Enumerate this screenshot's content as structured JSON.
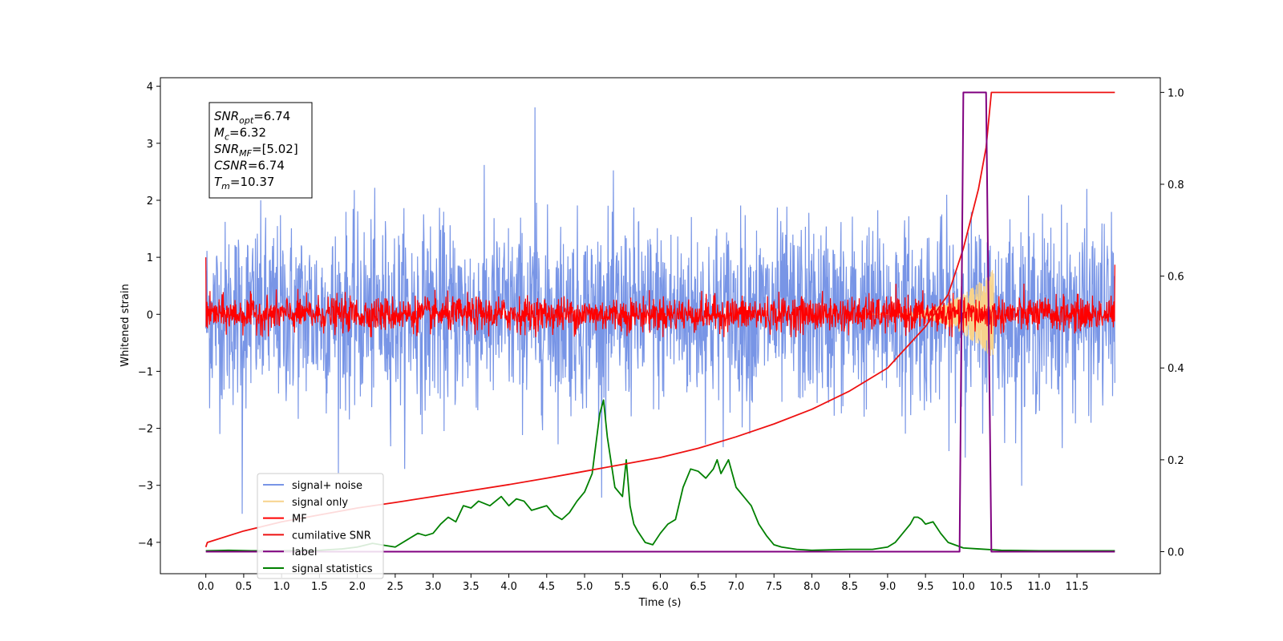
{
  "chart_data": {
    "type": "line",
    "xlabel": "Time (s)",
    "ylabel": "Whitened strain",
    "xlim": [
      -0.6,
      12.6
    ],
    "ylim_left": [
      -4.55,
      4.15
    ],
    "ylim_right": [
      -0.048,
      1.032
    ],
    "x_ticks": [
      "0.0",
      "0.5",
      "1.0",
      "1.5",
      "2.0",
      "2.5",
      "3.0",
      "3.5",
      "4.0",
      "4.5",
      "5.0",
      "5.5",
      "6.0",
      "6.5",
      "7.0",
      "7.5",
      "8.0",
      "8.5",
      "9.0",
      "9.5",
      "10.0",
      "10.5",
      "11.0",
      "11.5"
    ],
    "y_ticks_left": [
      "4",
      "3",
      "2",
      "1",
      "0",
      "−1",
      "−2",
      "−3",
      "−4"
    ],
    "y_ticks_right": [
      "1.0",
      "0.8",
      "0.6",
      "0.4",
      "0.2",
      "0.0"
    ],
    "annotation": {
      "lines": [
        {
          "sym": "SNR",
          "sub": "opt",
          "val": "=6.74"
        },
        {
          "sym": "M",
          "sub": "c",
          "val": "=6.32"
        },
        {
          "sym": "SNR",
          "sub": "MF",
          "val": "=[5.02]"
        },
        {
          "sym": "CSNR",
          "sub": "",
          "val": "=6.74"
        },
        {
          "sym": "T",
          "sub": "m",
          "val": "=10.37"
        }
      ]
    },
    "legend": {
      "position": "lower-left",
      "entries": [
        {
          "label": "signal+ noise",
          "color": "#7895e6"
        },
        {
          "label": "signal only",
          "color": "#f7d38c"
        },
        {
          "label": "MF",
          "color": "#ff0000"
        },
        {
          "label": "cumilative SNR",
          "color": "#ee1111"
        },
        {
          "label": "label",
          "color": "#800080"
        },
        {
          "label": "signal statistics",
          "color": "#008000"
        }
      ]
    },
    "series": [
      {
        "name": "signal+ noise",
        "axis": "left",
        "color": "#7895e6",
        "x_range": [
          0.0,
          12.0
        ],
        "noise_std": 0.8,
        "min": -3.5,
        "max": 3.63
      },
      {
        "name": "signal only",
        "axis": "left",
        "color": "#f7d38c",
        "x_range": [
          8.7,
          10.4
        ],
        "peak": 0.8
      },
      {
        "name": "MF",
        "axis": "left",
        "color": "#ff0000",
        "x_range": [
          0.0,
          12.0
        ],
        "noise_std": 0.15,
        "start": 1.0,
        "end": 0.87
      },
      {
        "name": "cumilative SNR",
        "axis": "right",
        "x": [
          0.0,
          0.02,
          0.5,
          1.0,
          1.5,
          2.0,
          2.5,
          3.0,
          3.5,
          4.0,
          4.5,
          5.0,
          5.5,
          6.0,
          6.5,
          7.0,
          7.5,
          8.0,
          8.5,
          9.0,
          9.5,
          9.8,
          10.0,
          10.2,
          10.3,
          10.37,
          12.0
        ],
        "y": [
          0.01,
          0.02,
          0.045,
          0.065,
          0.08,
          0.095,
          0.107,
          0.12,
          0.133,
          0.146,
          0.16,
          0.175,
          0.19,
          0.205,
          0.225,
          0.25,
          0.278,
          0.31,
          0.35,
          0.4,
          0.49,
          0.56,
          0.66,
          0.79,
          0.88,
          1.0,
          1.0
        ]
      },
      {
        "name": "label",
        "axis": "right",
        "x": [
          0.0,
          9.95,
          10.0,
          10.3,
          10.37,
          12.0
        ],
        "y": [
          0.0,
          0.0,
          1.0,
          1.0,
          0.0,
          0.0
        ]
      },
      {
        "name": "signal statistics",
        "axis": "right",
        "x": [
          0.0,
          0.3,
          0.6,
          1.0,
          1.5,
          1.8,
          2.0,
          2.2,
          2.35,
          2.5,
          2.7,
          2.8,
          2.9,
          3.0,
          3.1,
          3.2,
          3.3,
          3.4,
          3.5,
          3.6,
          3.75,
          3.9,
          4.0,
          4.1,
          4.2,
          4.3,
          4.4,
          4.5,
          4.6,
          4.7,
          4.8,
          4.9,
          5.0,
          5.1,
          5.2,
          5.25,
          5.3,
          5.4,
          5.5,
          5.55,
          5.6,
          5.65,
          5.7,
          5.8,
          5.9,
          6.0,
          6.1,
          6.2,
          6.3,
          6.4,
          6.5,
          6.6,
          6.7,
          6.75,
          6.8,
          6.9,
          7.0,
          7.1,
          7.2,
          7.3,
          7.4,
          7.5,
          7.6,
          7.8,
          8.0,
          8.5,
          8.8,
          9.0,
          9.1,
          9.2,
          9.3,
          9.35,
          9.4,
          9.45,
          9.5,
          9.6,
          9.7,
          9.8,
          10.0,
          10.2,
          10.5,
          11.0,
          12.0
        ],
        "y": [
          0.002,
          0.003,
          0.002,
          0.002,
          0.003,
          0.006,
          0.01,
          0.018,
          0.014,
          0.01,
          0.03,
          0.04,
          0.035,
          0.04,
          0.06,
          0.075,
          0.065,
          0.1,
          0.095,
          0.11,
          0.1,
          0.12,
          0.1,
          0.115,
          0.11,
          0.09,
          0.095,
          0.1,
          0.08,
          0.07,
          0.085,
          0.11,
          0.13,
          0.17,
          0.3,
          0.33,
          0.25,
          0.14,
          0.12,
          0.2,
          0.1,
          0.06,
          0.045,
          0.02,
          0.015,
          0.04,
          0.06,
          0.07,
          0.14,
          0.18,
          0.175,
          0.16,
          0.18,
          0.2,
          0.17,
          0.2,
          0.14,
          0.12,
          0.1,
          0.06,
          0.035,
          0.015,
          0.01,
          0.005,
          0.003,
          0.005,
          0.005,
          0.01,
          0.02,
          0.04,
          0.06,
          0.075,
          0.075,
          0.07,
          0.06,
          0.065,
          0.04,
          0.02,
          0.008,
          0.006,
          0.003,
          0.002,
          0.002
        ]
      }
    ]
  }
}
